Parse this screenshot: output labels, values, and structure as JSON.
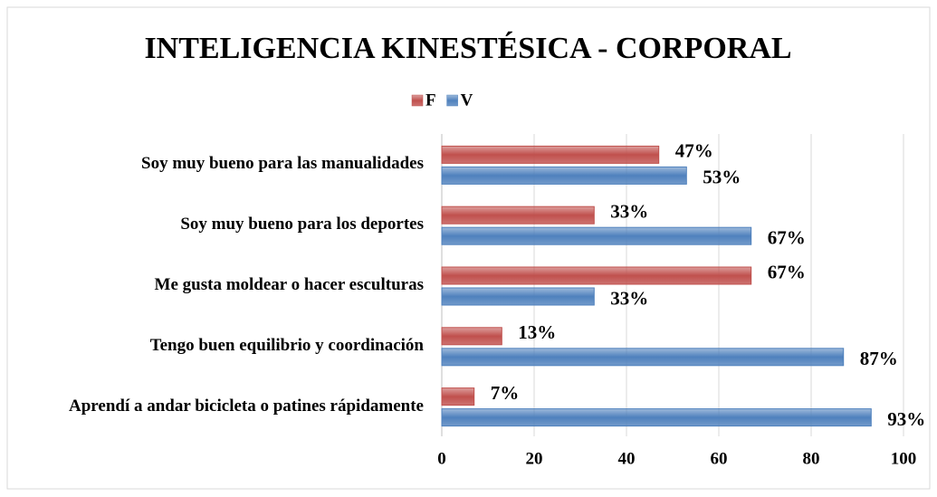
{
  "chart_data": {
    "type": "bar",
    "orientation": "horizontal",
    "title": "INTELIGENCIA KINESTÉSICA - CORPORAL",
    "categories": [
      "Soy muy bueno para las manualidades",
      "Soy muy bueno para los deportes",
      "Me gusta moldear o hacer esculturas",
      "Tengo buen equilibrio y coordinación",
      "Aprendí a andar bicicleta o patines rápidamente"
    ],
    "series": [
      {
        "name": "F",
        "color": "#c0504d",
        "values": [
          47,
          33,
          67,
          13,
          7
        ],
        "value_labels": [
          "47%",
          "33%",
          "67%",
          "13%",
          "7%"
        ]
      },
      {
        "name": "V",
        "color": "#4f81bd",
        "values": [
          53,
          67,
          33,
          87,
          93
        ],
        "value_labels": [
          "53%",
          "67%",
          "33%",
          "87%",
          "93%"
        ]
      }
    ],
    "xlim": [
      0,
      100
    ],
    "xticks": [
      0,
      20,
      40,
      60,
      80,
      100
    ],
    "grid": true,
    "legend": "top"
  }
}
